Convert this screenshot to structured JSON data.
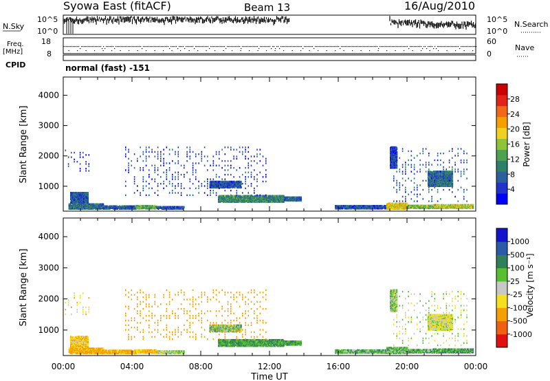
{
  "header": {
    "station": "Syowa East (fitACF)",
    "beam": "Beam 13",
    "date": "16/Aug/2010"
  },
  "panels": {
    "nsky": {
      "label": "N.Sky",
      "ytick_top": "10^5",
      "ytick_bottom": "10^0"
    },
    "nsearch": {
      "label": "N.Search",
      "ytick_top": "10^5",
      "ytick_bottom": "10^0"
    },
    "freq": {
      "label_line1": "Freq.",
      "label_line2": "[MHz]",
      "ytick_top": "18",
      "ytick_bottom": "8"
    },
    "nave": {
      "label": "Nave",
      "ytick_top": "60",
      "ytick_bottom": "0"
    },
    "cpid": {
      "label": "CPID",
      "value": "normal (fast) -151"
    }
  },
  "colorbars": {
    "power": {
      "label": "Power [dB]",
      "ticks": [
        "28",
        "24",
        "20",
        "16",
        "12",
        "8",
        "4"
      ],
      "colors": [
        "#0000ff",
        "#2233cc",
        "#2b5f9e",
        "#2e8068",
        "#4fa050",
        "#8fc43a",
        "#f0d020",
        "#f5a000",
        "#f06818",
        "#e02418",
        "#cc0000"
      ]
    },
    "velocity": {
      "label": "Velocity [m s⁻¹]",
      "ticks": [
        "1000",
        "500",
        "100",
        "25",
        "-25",
        "-100",
        "-500",
        "-1000"
      ],
      "colors": [
        "#1414cc",
        "#2a5aa8",
        "#2e7f5a",
        "#58c030",
        "#c8c8c8",
        "#f5e020",
        "#f5a000",
        "#f06010",
        "#e01010"
      ]
    }
  },
  "colors": {
    "ground_scatter": "#b0b0b0"
  },
  "chart_data": {
    "type": "heatmap",
    "title": "Syowa East (fitACF) Beam 13 16/Aug/2010",
    "xlabel": "Time UT",
    "ylabel": "Slant Range [km]",
    "xtick_labels": [
      "00:00",
      "04:00",
      "08:00",
      "12:00",
      "16:00",
      "20:00",
      "00:00"
    ],
    "ytick_labels": [
      "1000",
      "2000",
      "3000",
      "4000"
    ],
    "x_range_hours": [
      0,
      24
    ],
    "y_range_km": [
      180,
      4600
    ],
    "power_range_db": [
      0,
      30
    ],
    "velocity_range_ms": [
      -1000,
      1000
    ],
    "scatter_regions": [
      {
        "t0": 0.3,
        "t1": 2.3,
        "r0": 250,
        "r1": 420,
        "power": 8,
        "velocity": -150
      },
      {
        "t0": 0.4,
        "t1": 1.4,
        "r0": 450,
        "r1": 800,
        "power": 6,
        "velocity": -80
      },
      {
        "t0": 2.3,
        "t1": 4.2,
        "r0": 250,
        "r1": 350,
        "power": 7,
        "velocity": -140
      },
      {
        "t0": 4.2,
        "t1": 5.4,
        "r0": 260,
        "r1": 360,
        "power": 12,
        "velocity": -110
      },
      {
        "t0": 5.4,
        "t1": 7.0,
        "r0": 250,
        "r1": 330,
        "power": 6,
        "velocity": 20
      },
      {
        "t0": 9.0,
        "t1": 12.8,
        "r0": 480,
        "r1": 690,
        "power": 10,
        "velocity": 100
      },
      {
        "t0": 12.8,
        "t1": 13.8,
        "r0": 520,
        "r1": 640,
        "power": 7,
        "velocity": 110
      },
      {
        "t0": 15.8,
        "t1": 18.8,
        "r0": 260,
        "r1": 370,
        "power": 6,
        "velocity": 70
      },
      {
        "t0": 18.8,
        "t1": 20.0,
        "r0": 250,
        "r1": 430,
        "power": 18,
        "velocity": 60
      },
      {
        "t0": 20.0,
        "t1": 21.5,
        "r0": 270,
        "r1": 380,
        "power": 14,
        "velocity": 80
      },
      {
        "t0": 21.5,
        "t1": 23.8,
        "r0": 270,
        "r1": 400,
        "power": 16,
        "velocity": 90
      },
      {
        "t0": 19.0,
        "t1": 19.4,
        "r0": 1600,
        "r1": 2300,
        "power": 5,
        "velocity": 30
      },
      {
        "t0": 21.2,
        "t1": 22.6,
        "r0": 1000,
        "r1": 1500,
        "power": 8,
        "velocity": -20
      },
      {
        "t0": 8.5,
        "t1": 10.3,
        "r0": 950,
        "r1": 1150,
        "power": 6,
        "velocity": 40
      },
      {
        "t0": 3.6,
        "t1": 11.8,
        "r0": 700,
        "r1": 2300,
        "power": 5,
        "velocity": -200,
        "sparse": true
      },
      {
        "t0": 19.2,
        "t1": 23.5,
        "r0": 500,
        "r1": 2300,
        "power": 6,
        "velocity": 0,
        "sparse": true
      },
      {
        "t0": 0.1,
        "t1": 1.5,
        "r0": 1500,
        "r1": 2200,
        "power": 4,
        "velocity": -60,
        "sparse": true
      }
    ]
  }
}
